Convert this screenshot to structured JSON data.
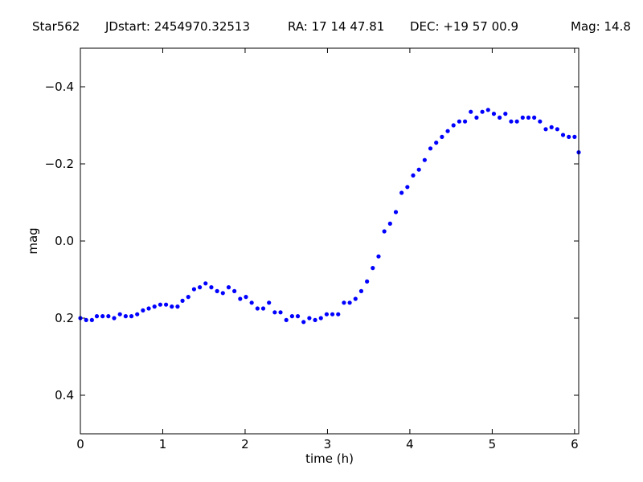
{
  "header": {
    "star": "Star562",
    "jdstart": "JDstart: 2454970.32513",
    "ra": "RA: 17 14 47.81",
    "dec": "DEC: +19 57 00.9",
    "mag": "Mag: 14.8"
  },
  "chart_data": {
    "type": "scatter",
    "xlabel": "time (h)",
    "ylabel": "mag",
    "xlim": [
      0,
      6.05
    ],
    "ylim": [
      0.5,
      -0.5
    ],
    "y_inverted": true,
    "grid": false,
    "legend": "none",
    "marker_color": "#0000ff",
    "x_ticks": [
      0,
      1,
      2,
      3,
      4,
      5,
      6
    ],
    "x_tick_labels": [
      "0",
      "1",
      "2",
      "3",
      "4",
      "5",
      "6"
    ],
    "y_ticks": [
      -0.4,
      -0.2,
      0.0,
      0.2,
      0.4
    ],
    "y_tick_labels": [
      "−0.4",
      "−0.2",
      "0.0",
      "0.2",
      "0.4"
    ],
    "series": [
      {
        "x": [
          0.0,
          0.07,
          0.14,
          0.2,
          0.27,
          0.34,
          0.41,
          0.48,
          0.55,
          0.62,
          0.69,
          0.76,
          0.83,
          0.9,
          0.97,
          1.04,
          1.11,
          1.18,
          1.24,
          1.31,
          1.38,
          1.45,
          1.52,
          1.59,
          1.66,
          1.73,
          1.8,
          1.87,
          1.94,
          2.01,
          2.08,
          2.15,
          2.22,
          2.29,
          2.36,
          2.43,
          2.5,
          2.57,
          2.64,
          2.71,
          2.78,
          2.85,
          2.92,
          2.99,
          3.06,
          3.13,
          3.2,
          3.27,
          3.34,
          3.41,
          3.48,
          3.55,
          3.62,
          3.69,
          3.76,
          3.83,
          3.9,
          3.97,
          4.04,
          4.11,
          4.18,
          4.25,
          4.32,
          4.39,
          4.46,
          4.53,
          4.6,
          4.67,
          4.74,
          4.81,
          4.88,
          4.95,
          5.02,
          5.09,
          5.16,
          5.23,
          5.3,
          5.37,
          5.44,
          5.51,
          5.58,
          5.65,
          5.72,
          5.79,
          5.86,
          5.93,
          6.0,
          6.05
        ],
        "y": [
          0.2,
          0.205,
          0.205,
          0.195,
          0.195,
          0.195,
          0.2,
          0.19,
          0.195,
          0.195,
          0.19,
          0.18,
          0.175,
          0.17,
          0.165,
          0.165,
          0.17,
          0.17,
          0.155,
          0.145,
          0.125,
          0.12,
          0.11,
          0.12,
          0.13,
          0.135,
          0.12,
          0.13,
          0.15,
          0.145,
          0.16,
          0.175,
          0.175,
          0.16,
          0.185,
          0.185,
          0.205,
          0.195,
          0.195,
          0.21,
          0.2,
          0.205,
          0.2,
          0.19,
          0.19,
          0.19,
          0.16,
          0.16,
          0.15,
          0.13,
          0.105,
          0.07,
          0.04,
          -0.025,
          -0.045,
          -0.075,
          -0.125,
          -0.14,
          -0.17,
          -0.185,
          -0.21,
          -0.24,
          -0.255,
          -0.27,
          -0.285,
          -0.3,
          -0.31,
          -0.31,
          -0.335,
          -0.32,
          -0.335,
          -0.34,
          -0.33,
          -0.32,
          -0.33,
          -0.31,
          -0.31,
          -0.32,
          -0.32,
          -0.32,
          -0.31,
          -0.29,
          -0.295,
          -0.29,
          -0.275,
          -0.27,
          -0.27,
          -0.23
        ]
      }
    ]
  }
}
